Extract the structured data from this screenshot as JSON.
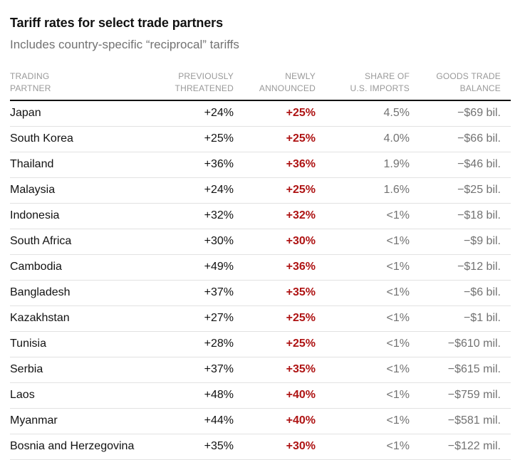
{
  "page": {
    "title": "Tariff rates for select trade partners",
    "subtitle": "Includes country-specific “reciprocal” tariffs"
  },
  "table": {
    "columns": [
      {
        "line1": "TRADING",
        "line2": "PARTNER"
      },
      {
        "line1": "PREVIOUSLY",
        "line2": "THREATENED"
      },
      {
        "line1": "NEWLY",
        "line2": "ANNOUNCED"
      },
      {
        "line1": "SHARE OF",
        "line2": "U.S. IMPORTS"
      },
      {
        "line1": "GOODS TRADE",
        "line2": "BALANCE"
      }
    ]
  },
  "colors": {
    "accent_red": "#ae1313",
    "text_dark": "#121212",
    "muted_gray": "#727272",
    "header_gray": "#999999",
    "divider_gray": "#e2e2e2",
    "header_rule": "#121212"
  },
  "chart_data": {
    "type": "table",
    "title": "Tariff rates for select trade partners",
    "subtitle": "Includes country-specific “reciprocal” tariffs",
    "columns": [
      "Trading partner",
      "Previously threatened",
      "Newly announced",
      "Share of U.S. imports",
      "Goods trade balance"
    ],
    "rows": [
      [
        "Japan",
        "+24%",
        "+25%",
        "4.5%",
        "−$69 bil."
      ],
      [
        "South Korea",
        "+25%",
        "+25%",
        "4.0%",
        "−$66 bil."
      ],
      [
        "Thailand",
        "+36%",
        "+36%",
        "1.9%",
        "−$46 bil."
      ],
      [
        "Malaysia",
        "+24%",
        "+25%",
        "1.6%",
        "−$25 bil."
      ],
      [
        "Indonesia",
        "+32%",
        "+32%",
        "<1%",
        "−$18 bil."
      ],
      [
        "South Africa",
        "+30%",
        "+30%",
        "<1%",
        "−$9 bil."
      ],
      [
        "Cambodia",
        "+49%",
        "+36%",
        "<1%",
        "−$12 bil."
      ],
      [
        "Bangladesh",
        "+37%",
        "+35%",
        "<1%",
        "−$6 bil."
      ],
      [
        "Kazakhstan",
        "+27%",
        "+25%",
        "<1%",
        "−$1 bil."
      ],
      [
        "Tunisia",
        "+28%",
        "+25%",
        "<1%",
        "−$610 mil."
      ],
      [
        "Serbia",
        "+37%",
        "+35%",
        "<1%",
        "−$615 mil."
      ],
      [
        "Laos",
        "+48%",
        "+40%",
        "<1%",
        "−$759 mil."
      ],
      [
        "Myanmar",
        "+44%",
        "+40%",
        "<1%",
        "−$581 mil."
      ],
      [
        "Bosnia and Herzegovina",
        "+35%",
        "+30%",
        "<1%",
        "−$122 mil."
      ]
    ]
  }
}
